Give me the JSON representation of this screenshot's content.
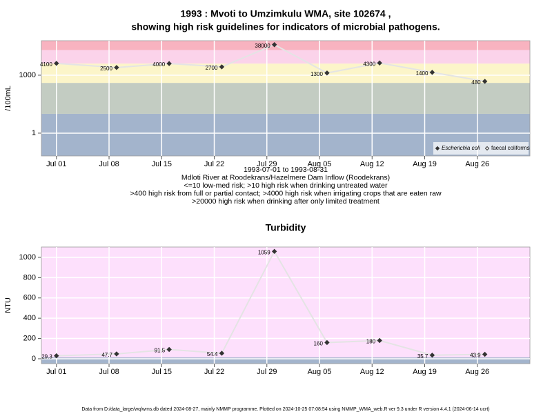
{
  "title": "1993 : Mvoti to Umzimkulu WMA, site 102674 ,",
  "subtitle": "showing high risk guidelines for indicators of microbial pathogens.",
  "footer": "Data from D:/data_large/wq/wms.db dated 2024-08-27, mainly NMMP programme. Plotted on 2024-10-25 07:08:54 using NMMP_WMA_web.R ver 9.3 under R version 4.4.1 (2024-06-14 ucrt)",
  "chart_data": [
    {
      "type": "line",
      "y_label": "/100mL",
      "log_y": true,
      "grid": true,
      "legend": "bottom-right",
      "notes": [
        "1993-07-01 to 1993-08-31",
        "Mdloti River at Roodekrans/Hazelmere Dam Inflow (Roodekrans)",
        "<=10 low-med risk; >10 high risk when drinking untreated water",
        ">400 high risk from full or partial contact; >4000 high risk when irrigating crops that are eaten raw",
        ">20000 high risk when drinking after only limited treatment"
      ],
      "x": [
        "Jul 01",
        "Jul 09",
        "Jul 16",
        "Jul 23",
        "Jul 30",
        "Aug 06",
        "Aug 13",
        "Aug 20",
        "Aug 27"
      ],
      "xlim": [
        "Jun 29",
        "Sep 02"
      ],
      "xticks": [
        "Jul 01",
        "Jul 08",
        "Jul 15",
        "Jul 22",
        "Jul 29",
        "Aug 05",
        "Aug 12",
        "Aug 19",
        "Aug 26"
      ],
      "ylim": [
        0.066,
        61000
      ],
      "yticks": [
        1,
        1000
      ],
      "bands": [
        {
          "from": 0.066,
          "to": 10,
          "color": "#a3b4cc"
        },
        {
          "from": 10,
          "to": 400,
          "color": "#c3ccc2"
        },
        {
          "from": 400,
          "to": 4000,
          "color": "#fcf5c9"
        },
        {
          "from": 4000,
          "to": 20000,
          "color": "#fbd3ea"
        },
        {
          "from": 20000,
          "to": 61000,
          "color": "#f8b3c0"
        }
      ],
      "series": [
        {
          "name": "Escherichia coli",
          "color": "#333333",
          "marker_fill": "#333333",
          "values": [
            4100,
            2500,
            4000,
            2700,
            38000,
            1300,
            4300,
            1400,
            480
          ]
        },
        {
          "name": "faecal coliforms",
          "color": "#333333",
          "marker_fill": "#ffffff",
          "values": [
            null,
            null,
            null,
            null,
            null,
            null,
            null,
            null,
            null
          ]
        }
      ]
    },
    {
      "type": "line",
      "title": "Turbidity",
      "y_label": "NTU",
      "log_y": false,
      "grid": true,
      "x": [
        "Jul 01",
        "Jul 09",
        "Jul 16",
        "Jul 23",
        "Jul 30",
        "Aug 06",
        "Aug 13",
        "Aug 20",
        "Aug 27"
      ],
      "xlim": [
        "Jun 29",
        "Sep 02"
      ],
      "xticks": [
        "Jul 01",
        "Jul 08",
        "Jul 15",
        "Jul 22",
        "Jul 29",
        "Aug 05",
        "Aug 12",
        "Aug 19",
        "Aug 26"
      ],
      "ylim": [
        -48,
        1102
      ],
      "yticks": [
        0,
        200,
        400,
        600,
        800,
        1000
      ],
      "bands": [
        {
          "from": -48,
          "to": 13,
          "color": "#a3b4cc"
        },
        {
          "from": 13,
          "to": 1102,
          "color": "#fde0fc"
        }
      ],
      "series": [
        {
          "name": "Turbidity",
          "color": "#333333",
          "marker_fill": "#333333",
          "values": [
            29.3,
            47.7,
            91.5,
            54.4,
            1059,
            160,
            180,
            35.7,
            43.9
          ]
        }
      ]
    }
  ]
}
